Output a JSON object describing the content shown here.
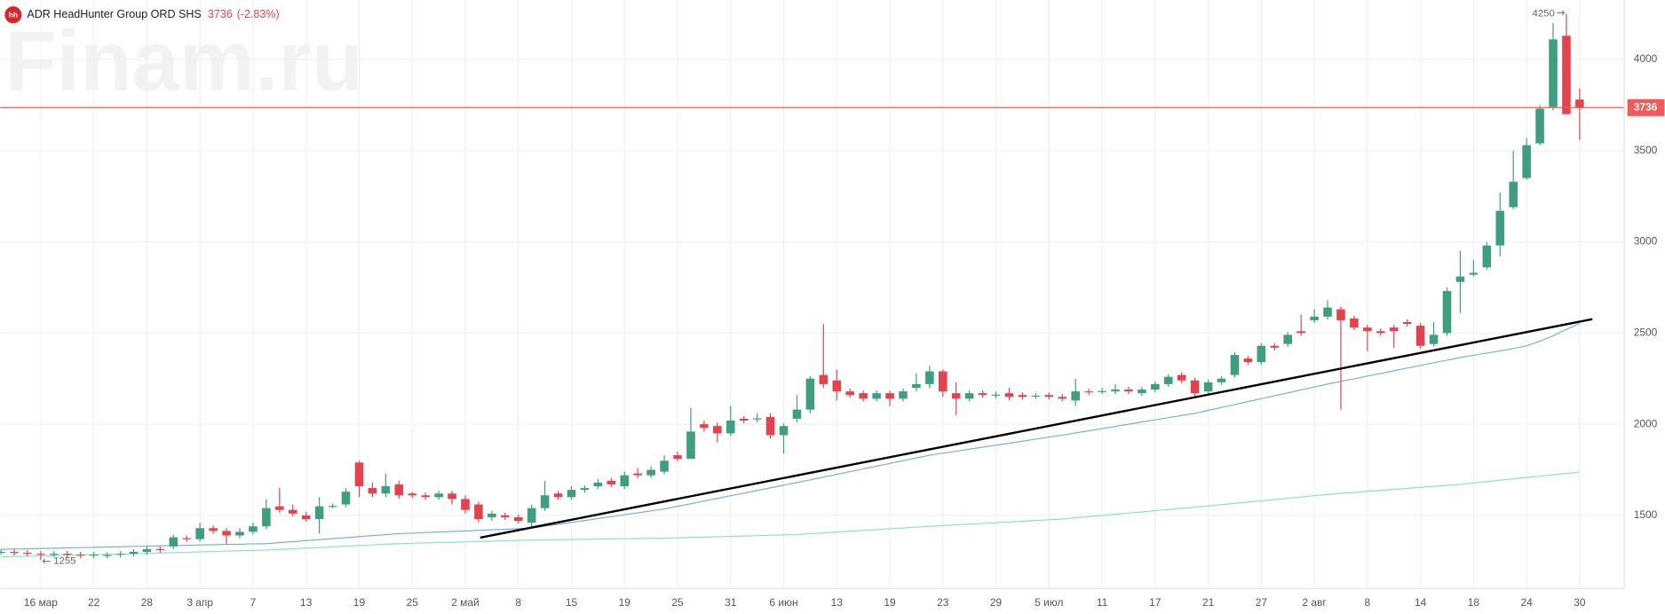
{
  "chart_data": {
    "type": "candlestick",
    "title": "ADR HeadHunter Group ORD SHS",
    "logo": "hh",
    "change": "(-2.83%)",
    "watermark": "Finam.ru",
    "up_color": "#3f9e7f",
    "down_color": "#e4434e",
    "price_line_color": "#f05a5a",
    "ylim": [
      1099,
      4326
    ],
    "yticks": [
      1500,
      2000,
      2500,
      3000,
      3500,
      4000
    ],
    "grid": true,
    "categories": [
      null,
      null,
      null,
      "16 мар",
      null,
      null,
      null,
      "22",
      null,
      null,
      null,
      "28",
      null,
      null,
      null,
      "3 апр",
      null,
      null,
      null,
      "7",
      null,
      null,
      null,
      "13",
      null,
      null,
      null,
      "19",
      null,
      null,
      null,
      "25",
      null,
      null,
      null,
      "2 май",
      null,
      null,
      null,
      "8",
      null,
      null,
      null,
      "15",
      null,
      null,
      null,
      "19",
      null,
      null,
      null,
      "25",
      null,
      null,
      null,
      "31",
      null,
      null,
      null,
      "6 июн",
      null,
      null,
      null,
      "13",
      null,
      null,
      null,
      "19",
      null,
      null,
      null,
      "23",
      null,
      null,
      null,
      "29",
      null,
      null,
      null,
      "5 июл",
      null,
      null,
      null,
      "11",
      null,
      null,
      null,
      "17",
      null,
      null,
      null,
      "21",
      null,
      null,
      null,
      "27",
      null,
      null,
      null,
      "2 авг",
      null,
      null,
      null,
      "8",
      null,
      null,
      null,
      "14",
      null,
      null,
      null,
      "18",
      null,
      null,
      null,
      "24",
      null,
      null,
      null,
      "30"
    ],
    "open": [
      1300,
      1300,
      1295,
      1290,
      1285,
      1290,
      1285,
      1280,
      1280,
      1285,
      1290,
      1300,
      1315,
      1330,
      1375,
      1370,
      1430,
      1415,
      1390,
      1410,
      1440,
      1550,
      1530,
      1500,
      1480,
      1550,
      1560,
      1790,
      1650,
      1620,
      1670,
      1620,
      1610,
      1600,
      1620,
      1590,
      1560,
      1490,
      1500,
      1490,
      1460,
      1540,
      1620,
      1600,
      1640,
      1660,
      1690,
      1660,
      1730,
      1720,
      1740,
      1830,
      1810,
      2000,
      1990,
      1950,
      2030,
      2030,
      2040,
      1940,
      2030,
      2080,
      2270,
      2240,
      2180,
      2170,
      2140,
      2170,
      2140,
      2200,
      2220,
      2290,
      2170,
      2140,
      2170,
      2160,
      2170,
      2160,
      2155,
      2160,
      2150,
      2130,
      2180,
      2180,
      2180,
      2190,
      2170,
      2190,
      2220,
      2270,
      2240,
      2180,
      2230,
      2270,
      2360,
      2340,
      2430,
      2440,
      2510,
      2570,
      2590,
      2630,
      2580,
      2530,
      2510,
      2530,
      2560,
      2540,
      2440,
      2500,
      2780,
      2820,
      2860,
      2980,
      3190,
      3350,
      3540,
      3740,
      4130,
      3780
    ],
    "high": [
      1315,
      1315,
      1310,
      1305,
      1305,
      1305,
      1300,
      1300,
      1298,
      1305,
      1315,
      1330,
      1330,
      1395,
      1390,
      1460,
      1445,
      1430,
      1430,
      1460,
      1590,
      1650,
      1560,
      1520,
      1600,
      1565,
      1650,
      1800,
      1680,
      1730,
      1690,
      1630,
      1625,
      1635,
      1635,
      1610,
      1575,
      1525,
      1515,
      1505,
      1560,
      1690,
      1635,
      1660,
      1665,
      1700,
      1705,
      1740,
      1760,
      1770,
      1830,
      1850,
      2090,
      2020,
      2010,
      2100,
      2045,
      2060,
      2060,
      2005,
      2160,
      2265,
      2550,
      2300,
      2195,
      2185,
      2185,
      2185,
      2195,
      2280,
      2320,
      2300,
      2230,
      2185,
      2185,
      2180,
      2200,
      2175,
      2170,
      2175,
      2165,
      2250,
      2195,
      2200,
      2220,
      2205,
      2205,
      2235,
      2275,
      2285,
      2255,
      2245,
      2265,
      2395,
      2375,
      2445,
      2445,
      2505,
      2600,
      2630,
      2680,
      2645,
      2595,
      2545,
      2525,
      2545,
      2575,
      2555,
      2560,
      2750,
      2950,
      2900,
      3000,
      3270,
      3500,
      3570,
      3750,
      4200,
      4250,
      3840
    ],
    "low": [
      1285,
      1280,
      1275,
      1255,
      1270,
      1270,
      1265,
      1265,
      1265,
      1270,
      1275,
      1285,
      1295,
      1315,
      1355,
      1355,
      1400,
      1340,
      1375,
      1395,
      1425,
      1515,
      1495,
      1465,
      1400,
      1540,
      1545,
      1600,
      1600,
      1600,
      1590,
      1595,
      1585,
      1585,
      1560,
      1510,
      1460,
      1470,
      1475,
      1455,
      1440,
      1525,
      1585,
      1585,
      1625,
      1645,
      1655,
      1645,
      1705,
      1705,
      1725,
      1795,
      1820,
      1960,
      1900,
      1935,
      2005,
      2010,
      1920,
      1840,
      2010,
      2060,
      2200,
      2130,
      2145,
      2125,
      2125,
      2100,
      2125,
      2180,
      2200,
      2150,
      2050,
      2125,
      2145,
      2140,
      2130,
      2135,
      2140,
      2135,
      2125,
      2100,
      2160,
      2165,
      2165,
      2165,
      2155,
      2175,
      2205,
      2225,
      2150,
      2165,
      2215,
      2255,
      2325,
      2325,
      2405,
      2425,
      2485,
      2555,
      2575,
      2080,
      2515,
      2400,
      2485,
      2420,
      2535,
      2415,
      2425,
      2485,
      2610,
      2810,
      2845,
      2920,
      3180,
      3340,
      3530,
      3720,
      3700,
      3560
    ],
    "close": [
      1300,
      1295,
      1290,
      1285,
      1290,
      1285,
      1280,
      1285,
      1283,
      1290,
      1300,
      1315,
      1310,
      1380,
      1370,
      1430,
      1415,
      1390,
      1410,
      1440,
      1540,
      1530,
      1510,
      1480,
      1550,
      1552,
      1630,
      1660,
      1620,
      1660,
      1610,
      1610,
      1600,
      1620,
      1590,
      1530,
      1480,
      1510,
      1490,
      1470,
      1540,
      1610,
      1600,
      1640,
      1650,
      1680,
      1670,
      1720,
      1720,
      1750,
      1800,
      1810,
      1960,
      1980,
      1950,
      2020,
      2020,
      2032,
      1940,
      1990,
      2080,
      2250,
      2220,
      2180,
      2160,
      2140,
      2170,
      2140,
      2180,
      2220,
      2290,
      2180,
      2140,
      2170,
      2160,
      2162,
      2150,
      2150,
      2157,
      2150,
      2140,
      2180,
      2175,
      2182,
      2190,
      2180,
      2190,
      2220,
      2260,
      2240,
      2170,
      2230,
      2250,
      2380,
      2340,
      2430,
      2420,
      2490,
      2500,
      2590,
      2640,
      2570,
      2530,
      2510,
      2500,
      2510,
      2550,
      2430,
      2490,
      2730,
      2810,
      2830,
      2980,
      3170,
      3330,
      3530,
      3730,
      4110,
      3700,
      3736
    ],
    "moving_averages": [
      {
        "color": "#7aaee0",
        "values": [
          1314,
          1316,
          1317,
          1319,
          1320,
          1322,
          1324,
          1325,
          1327,
          1328,
          1330,
          1332,
          1333,
          1335,
          1336,
          1338,
          1339,
          1341,
          1342,
          1344,
          1345,
          1351,
          1356,
          1362,
          1367,
          1373,
          1378,
          1384,
          1389,
          1395,
          1400,
          1403,
          1406,
          1409,
          1412,
          1415,
          1418,
          1421,
          1424,
          1427,
          1430,
          1441,
          1451,
          1462,
          1472,
          1483,
          1493,
          1504,
          1514,
          1525,
          1535,
          1550,
          1564,
          1579,
          1593,
          1608,
          1622,
          1637,
          1651,
          1666,
          1680,
          1695,
          1710,
          1725,
          1740,
          1755,
          1770,
          1785,
          1800,
          1815,
          1830,
          1841,
          1852,
          1863,
          1874,
          1885,
          1896,
          1907,
          1918,
          1929,
          1940,
          1952,
          1964,
          1976,
          1988,
          2000,
          2012,
          2024,
          2036,
          2048,
          2060,
          2076,
          2092,
          2108,
          2124,
          2140,
          2156,
          2172,
          2188,
          2204,
          2220,
          2235,
          2249,
          2264,
          2278,
          2293,
          2308,
          2322,
          2337,
          2351,
          2366,
          2378,
          2390,
          2402,
          2415,
          2430,
          2455,
          2485,
          2520,
          2552
        ]
      },
      {
        "color": "#86e3c6",
        "values": [
          1273,
          1275,
          1276,
          1278,
          1280,
          1282,
          1283,
          1285,
          1287,
          1288,
          1290,
          1292,
          1294,
          1296,
          1298,
          1300,
          1302,
          1304,
          1306,
          1308,
          1310,
          1314,
          1317,
          1321,
          1324,
          1328,
          1331,
          1335,
          1338,
          1342,
          1345,
          1347,
          1349,
          1351,
          1353,
          1355,
          1357,
          1359,
          1361,
          1363,
          1365,
          1366,
          1367,
          1368,
          1369,
          1370,
          1371,
          1372,
          1373,
          1374,
          1375,
          1377,
          1379,
          1381,
          1383,
          1385,
          1387,
          1389,
          1391,
          1393,
          1395,
          1400,
          1404,
          1409,
          1413,
          1418,
          1422,
          1427,
          1431,
          1436,
          1440,
          1444,
          1448,
          1452,
          1456,
          1460,
          1464,
          1468,
          1472,
          1476,
          1480,
          1487,
          1493,
          1500,
          1506,
          1513,
          1519,
          1526,
          1532,
          1539,
          1545,
          1552,
          1559,
          1566,
          1573,
          1580,
          1587,
          1594,
          1601,
          1608,
          1615,
          1621,
          1626,
          1632,
          1637,
          1643,
          1648,
          1654,
          1659,
          1665,
          1670,
          1678,
          1685,
          1693,
          1700,
          1708,
          1715,
          1723,
          1730,
          1738
        ]
      }
    ],
    "trend_line": {
      "color": "#000000",
      "start": 1378,
      "end": 2576
    }
  }
}
